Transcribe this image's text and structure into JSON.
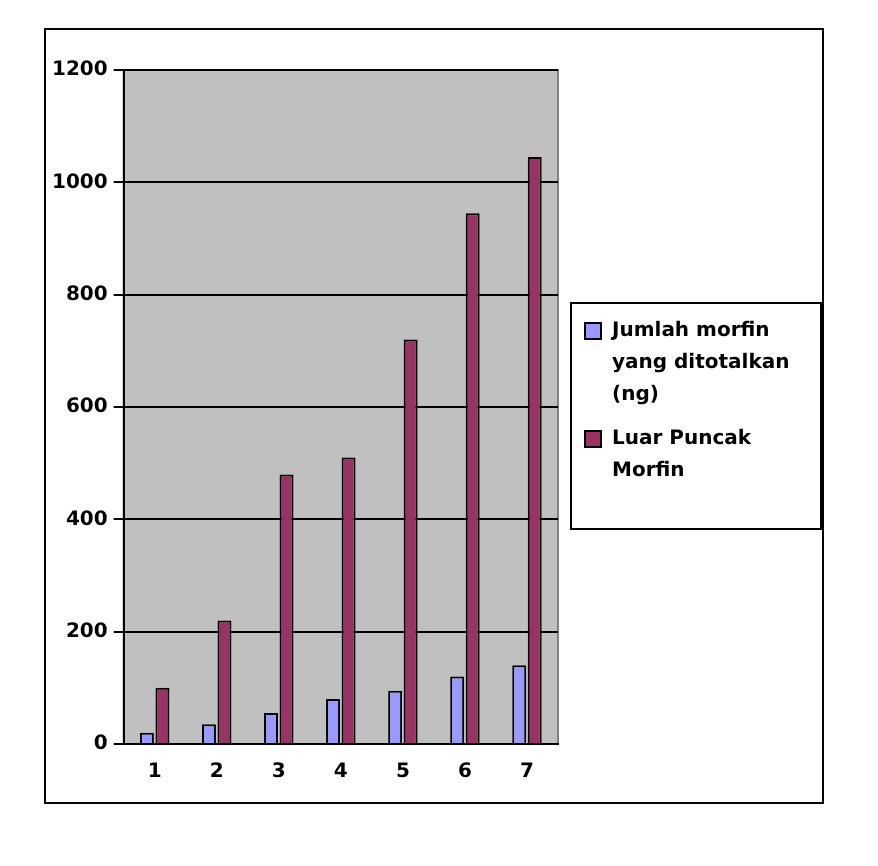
{
  "chart_data": {
    "type": "bar",
    "categories": [
      "1",
      "2",
      "3",
      "4",
      "5",
      "6",
      "7"
    ],
    "series": [
      {
        "name": "Jumlah morfin yang ditotalkan (ng)",
        "color": "#9999ff",
        "values": [
          20,
          35,
          55,
          80,
          95,
          120,
          140
        ]
      },
      {
        "name": "Luar Puncak Morfin",
        "color": "#993366",
        "values": [
          100,
          220,
          480,
          510,
          720,
          945,
          1045
        ]
      }
    ],
    "ylim": [
      0,
      1200
    ],
    "yticks": [
      0,
      200,
      400,
      600,
      800,
      1000,
      1200
    ],
    "grid": "y",
    "legend": "right"
  }
}
